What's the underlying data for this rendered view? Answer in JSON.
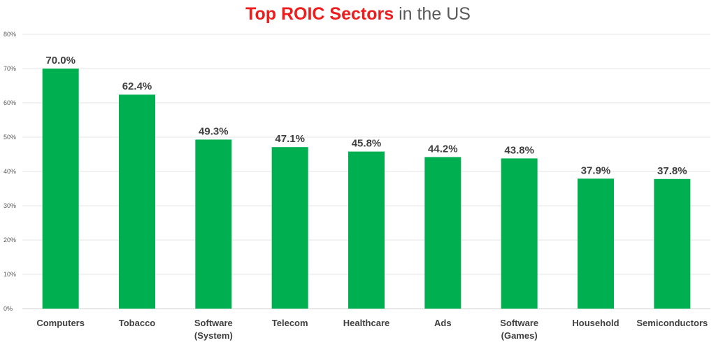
{
  "chart_data": {
    "type": "bar",
    "title": {
      "highlight": "Top ROIC Sectors",
      "rest": " in the US"
    },
    "categories": [
      [
        "Computers"
      ],
      [
        "Tobacco"
      ],
      [
        "Software",
        "(System)"
      ],
      [
        "Telecom"
      ],
      [
        "Healthcare"
      ],
      [
        "Ads"
      ],
      [
        "Software",
        "(Games)"
      ],
      [
        "Household"
      ],
      [
        "Semiconductors"
      ]
    ],
    "values": [
      70.0,
      62.4,
      49.3,
      47.1,
      45.8,
      44.2,
      43.8,
      37.9,
      37.8
    ],
    "data_labels": [
      "70.0%",
      "62.4%",
      "49.3%",
      "47.1%",
      "45.8%",
      "44.2%",
      "43.8%",
      "37.9%",
      "37.8%"
    ],
    "ylim": [
      0,
      80
    ],
    "yticks": [
      "0%",
      "10%",
      "20%",
      "30%",
      "40%",
      "50%",
      "60%",
      "70%",
      "80%"
    ],
    "grid": true,
    "colors": {
      "bar": "#00b050",
      "title_highlight": "#ee1c1c",
      "title_rest": "#595959",
      "grid": "#e6e6e6",
      "axis": "#d0d0d0"
    }
  }
}
